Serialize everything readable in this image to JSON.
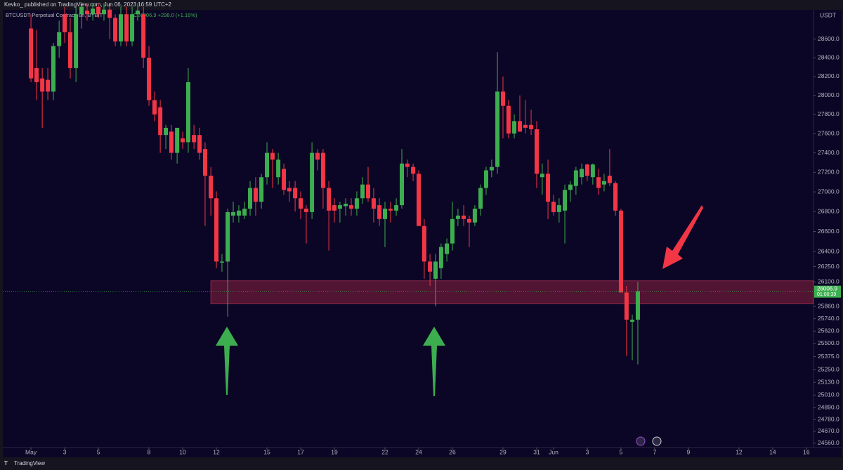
{
  "header": "Kevko_ published on TradingView.com, Jun 06, 2023 16:59 UTC+2",
  "footer": "TradingView",
  "chart_data": {
    "type": "candlestick",
    "title": "BTCUSDT Perpetual Contract, 8h, BYBIT",
    "subtitle": "C26006.9 +298.0 (+1.16%)",
    "currency": "USDT",
    "log": true,
    "up_color": "#3dae4f",
    "down_color": "#f23645",
    "last_price": 26006.9,
    "countdown": "01:00:39",
    "zone": {
      "x": 10.67,
      "low": 25885,
      "high": 26110
    },
    "xlim": [
      -1.67,
      46.42
    ],
    "ylim": [
      24520,
      28910
    ],
    "xticks": [
      {
        "value": 0,
        "label": "May"
      },
      {
        "value": 2,
        "label": "3"
      },
      {
        "value": 4,
        "label": "5"
      },
      {
        "value": 7,
        "label": "8"
      },
      {
        "value": 9,
        "label": "10"
      },
      {
        "value": 11,
        "label": "12"
      },
      {
        "value": 14,
        "label": "15"
      },
      {
        "value": 16,
        "label": "17"
      },
      {
        "value": 18,
        "label": "19"
      },
      {
        "value": 21,
        "label": "22"
      },
      {
        "value": 23,
        "label": "24"
      },
      {
        "value": 25,
        "label": "26"
      },
      {
        "value": 28,
        "label": "29"
      },
      {
        "value": 30,
        "label": "31"
      },
      {
        "value": 31,
        "label": "Jun"
      },
      {
        "value": 33,
        "label": "3"
      },
      {
        "value": 35,
        "label": "5"
      },
      {
        "value": 37,
        "label": "7"
      },
      {
        "value": 39,
        "label": "9"
      },
      {
        "value": 42,
        "label": "12"
      },
      {
        "value": 44,
        "label": "14"
      },
      {
        "value": 46,
        "label": "16"
      }
    ],
    "yticks": [
      {
        "value": 28600,
        "label": "28600.0"
      },
      {
        "value": 28400,
        "label": "28400.0"
      },
      {
        "value": 28200,
        "label": "28200.0"
      },
      {
        "value": 28000,
        "label": "28000.0"
      },
      {
        "value": 27800,
        "label": "27800.0"
      },
      {
        "value": 27600,
        "label": "27600.0"
      },
      {
        "value": 27400,
        "label": "27400.0"
      },
      {
        "value": 27200,
        "label": "27200.0"
      },
      {
        "value": 27000,
        "label": "27000.0"
      },
      {
        "value": 26800,
        "label": "26800.0"
      },
      {
        "value": 26600,
        "label": "26600.0"
      },
      {
        "value": 26400,
        "label": "26400.0"
      },
      {
        "value": 26250,
        "label": "26250.0"
      },
      {
        "value": 26100,
        "label": "26100.0"
      },
      {
        "value": 25860,
        "label": "25860.0"
      },
      {
        "value": 25740,
        "label": "25740.0"
      },
      {
        "value": 25620,
        "label": "25620.0"
      },
      {
        "value": 25500,
        "label": "25500.0"
      },
      {
        "value": 25375,
        "label": "25375.0"
      },
      {
        "value": 25250,
        "label": "25250.0"
      },
      {
        "value": 25130,
        "label": "25130.0"
      },
      {
        "value": 25010,
        "label": "25010.0"
      },
      {
        "value": 24890,
        "label": "24890.0"
      },
      {
        "value": 24780,
        "label": "24780.0"
      },
      {
        "value": 24670,
        "label": "24670.0"
      },
      {
        "value": 24560,
        "label": "24560.0"
      }
    ],
    "x": [
      0,
      0.33,
      0.67,
      1,
      1.33,
      1.67,
      2,
      2.33,
      2.67,
      3,
      3.33,
      3.67,
      4,
      4.33,
      4.67,
      5,
      5.33,
      5.67,
      6,
      6.33,
      6.67,
      7,
      7.33,
      7.67,
      8,
      8.33,
      8.67,
      9,
      9.33,
      9.67,
      10,
      10.33,
      10.67,
      11,
      11.33,
      11.67,
      12,
      12.33,
      12.67,
      13,
      13.33,
      13.67,
      14,
      14.33,
      14.67,
      15,
      15.33,
      15.67,
      16,
      16.33,
      16.67,
      17,
      17.33,
      17.67,
      18,
      18.33,
      18.67,
      19,
      19.33,
      19.67,
      20,
      20.33,
      20.67,
      21,
      21.33,
      21.67,
      22,
      22.33,
      22.67,
      23,
      23.33,
      23.67,
      24,
      24.33,
      24.67,
      25,
      25.33,
      25.67,
      26,
      26.33,
      26.67,
      27,
      27.33,
      27.67,
      28,
      28.33,
      28.67,
      29,
      29.33,
      29.67,
      30,
      30.33,
      30.67,
      31,
      31.33,
      31.67,
      32,
      32.33,
      32.67,
      33,
      33.33,
      33.67,
      34,
      34.33,
      34.67,
      35,
      35.33,
      35.67,
      36
    ],
    "open": [
      28715,
      28290,
      28180,
      28165,
      28040,
      28525,
      28870,
      28675,
      28290,
      28870,
      28910,
      28870,
      28950,
      28870,
      28920,
      28830,
      28575,
      28870,
      28575,
      28870,
      28870,
      28400,
      27950,
      27875,
      27585,
      27620,
      27400,
      27550,
      27510,
      27585,
      27585,
      27440,
      27165,
      26935,
      26290,
      26300,
      26760,
      26760,
      26760,
      26830,
      27040,
      26900,
      27150,
      27400,
      27150,
      27235,
      27040,
      27040,
      26935,
      26830,
      26795,
      27400,
      27400,
      27040,
      26865,
      26830,
      26855,
      26865,
      26830,
      26935,
      27075,
      26935,
      26865,
      26725,
      26830,
      26810,
      26865,
      27290,
      27255,
      27185,
      26655,
      26300,
      26130,
      26235,
      26375,
      26480,
      26725,
      26760,
      26725,
      26690,
      26830,
      27040,
      27220,
      27255,
      28040,
      27890,
      27600,
      27730,
      27690,
      27690,
      27645,
      27150,
      27185,
      26900,
      26795,
      26810,
      27020,
      27060,
      27150,
      27280,
      27150,
      27150,
      27075,
      27165,
      27090,
      26810,
      25995,
      25710,
      25730
    ],
    "high": [
      28870,
      28700,
      28290,
      28290,
      28560,
      28800,
      28950,
      28830,
      28950,
      28990,
      28990,
      28990,
      28990,
      28990,
      28990,
      28870,
      28950,
      28950,
      28950,
      28990,
      28950,
      28525,
      28040,
      27950,
      27690,
      27690,
      27660,
      27620,
      28290,
      27690,
      27660,
      27510,
      27255,
      27005,
      26375,
      26830,
      26900,
      26865,
      26900,
      27110,
      27150,
      27185,
      27510,
      27440,
      27400,
      27290,
      27110,
      27110,
      27005,
      26865,
      27510,
      27440,
      27440,
      27110,
      26935,
      26900,
      26935,
      26935,
      27005,
      27150,
      27255,
      27040,
      26935,
      26900,
      26900,
      26935,
      27440,
      27330,
      27290,
      27220,
      26725,
      26375,
      26375,
      26480,
      26530,
      26900,
      26830,
      26865,
      26760,
      26865,
      27075,
      27255,
      27330,
      28460,
      28200,
      27950,
      27800,
      28000,
      27950,
      27850,
      27730,
      27290,
      27330,
      26970,
      26935,
      27075,
      27110,
      27255,
      27290,
      27290,
      27290,
      27235,
      27185,
      27440,
      27110,
      26830,
      26060,
      25780,
      26100
    ],
    "low": [
      28140,
      27950,
      27660,
      27950,
      27950,
      28400,
      28560,
      28180,
      28140,
      28715,
      28800,
      28800,
      28830,
      28800,
      28600,
      28525,
      28525,
      28525,
      28525,
      28800,
      28290,
      27890,
      27730,
      27400,
      27440,
      27330,
      27290,
      27440,
      27400,
      27440,
      27330,
      26655,
      26760,
      26235,
      26200,
      25760,
      26690,
      26690,
      26725,
      26760,
      26760,
      26830,
      27075,
      27040,
      27075,
      26970,
      26900,
      26800,
      26725,
      26480,
      26725,
      27220,
      26830,
      26410,
      26690,
      26690,
      26760,
      26760,
      26760,
      26880,
      26900,
      26690,
      26655,
      26445,
      26690,
      26760,
      26830,
      27150,
      27110,
      26655,
      26130,
      26060,
      25860,
      26130,
      26300,
      26410,
      26655,
      26655,
      26445,
      26655,
      26760,
      26970,
      27150,
      27185,
      27550,
      27550,
      27550,
      27620,
      27600,
      27585,
      27040,
      26970,
      26725,
      26760,
      26690,
      26480,
      26900,
      26970,
      27075,
      27110,
      27075,
      26970,
      27005,
      27060,
      26760,
      25995,
      25380,
      25340,
      25300
    ],
    "close": [
      28180,
      28140,
      28040,
      28040,
      28525,
      28675,
      28675,
      28290,
      28870,
      28950,
      28870,
      28930,
      28870,
      28920,
      28830,
      28575,
      28870,
      28575,
      28870,
      28910,
      28400,
      27950,
      27800,
      27585,
      27660,
      27400,
      27660,
      27510,
      28140,
      27510,
      27400,
      27165,
      26935,
      26300,
      26300,
      26795,
      26795,
      26810,
      26830,
      27040,
      26900,
      27150,
      27400,
      27330,
      27330,
      27020,
      27005,
      26935,
      26830,
      26795,
      27400,
      27330,
      27040,
      26810,
      26810,
      26865,
      26880,
      26830,
      26935,
      27075,
      26935,
      26830,
      26725,
      26830,
      26810,
      26865,
      27290,
      27255,
      27185,
      26655,
      26300,
      26200,
      26300,
      26445,
      26480,
      26725,
      26760,
      26725,
      26690,
      26830,
      27040,
      27220,
      27255,
      28040,
      27890,
      27600,
      27730,
      27620,
      27660,
      27645,
      27185,
      27185,
      26900,
      26795,
      26865,
      27020,
      27075,
      27220,
      27235,
      27165,
      27280,
      27040,
      27110,
      27090,
      26810,
      25995,
      25730,
      25730,
      26006.9
    ]
  }
}
